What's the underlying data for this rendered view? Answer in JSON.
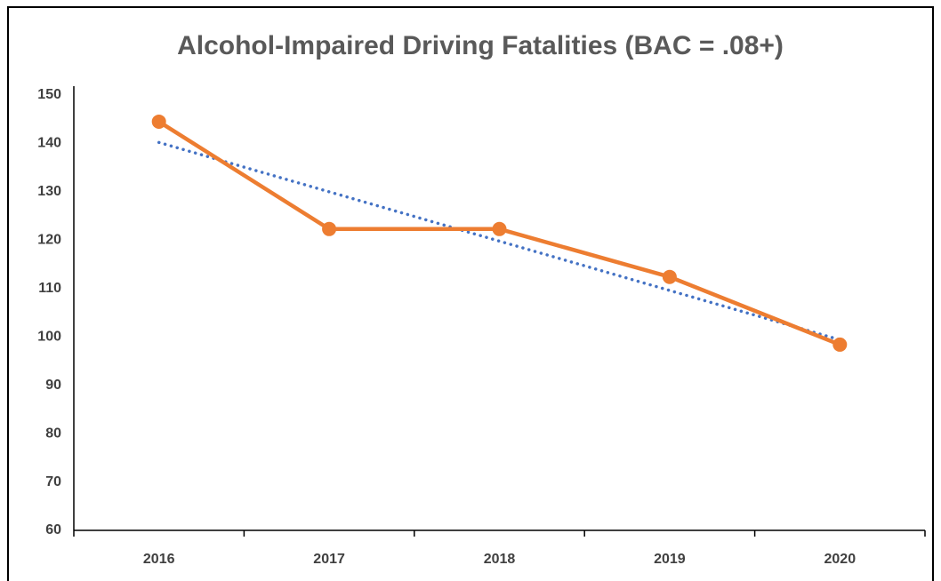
{
  "chart_data": {
    "type": "line",
    "title": "Alcohol-Impaired Driving Fatalities (BAC = .08+)",
    "categories": [
      "2016",
      "2017",
      "2018",
      "2019",
      "2020"
    ],
    "series": [
      {
        "color": "#ed7d31",
        "values": [
          144.5,
          122.3,
          122.3,
          112.4,
          98.4
        ],
        "markers": true,
        "dash": "solid"
      },
      {
        "color": "#4472c4",
        "values": [
          140.2,
          130,
          119.8,
          109.6,
          99.4
        ],
        "markers": false,
        "dash": "dotted"
      }
    ],
    "ylim": [
      60,
      150
    ],
    "yticks": [
      60,
      70,
      80,
      90,
      100,
      110,
      120,
      130,
      140,
      150
    ],
    "grid": false
  }
}
